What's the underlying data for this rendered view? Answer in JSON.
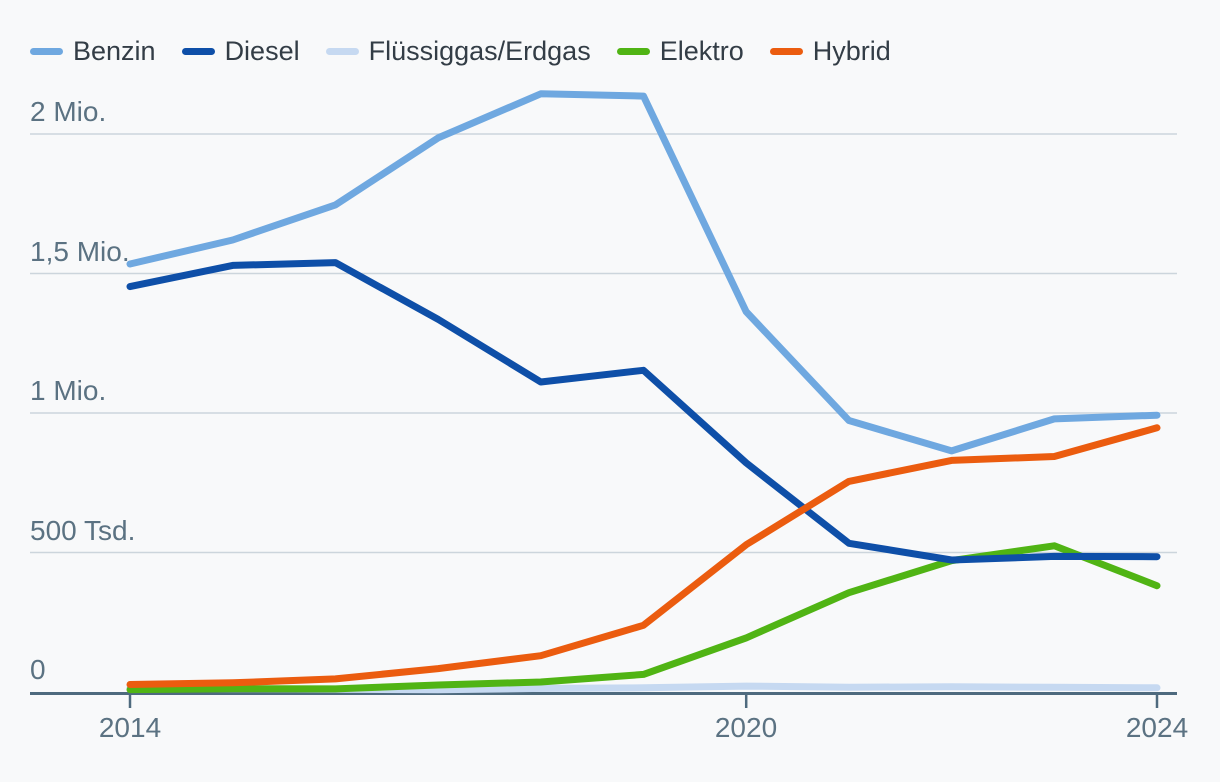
{
  "colors": {
    "background": "#f8f9fa",
    "grid": "#ccd5dc",
    "axis": "#4e6a7e",
    "tick_text": "#5b7282",
    "legend_text": "#333d46"
  },
  "chart_data": {
    "type": "line",
    "title": "",
    "x": [
      2014,
      2015,
      2016,
      2017,
      2018,
      2019,
      2020,
      2021,
      2022,
      2023,
      2024
    ],
    "series": [
      {
        "name": "Benzin",
        "slug": "benzin",
        "color": "#6fa8e0",
        "values": [
          1534000,
          1620000,
          1746000,
          1986000,
          2144000,
          2136000,
          1363000,
          973000,
          864000,
          979000,
          992000
        ]
      },
      {
        "name": "Diesel",
        "slug": "diesel",
        "color": "#0e4fa8",
        "values": [
          1453000,
          1529000,
          1539000,
          1336000,
          1111000,
          1153000,
          821000,
          533000,
          473000,
          486000,
          485000
        ]
      },
      {
        "name": "Flüssiggas/Erdgas",
        "slug": "fluessiggas-erdgas",
        "color": "#c6d9f1",
        "values": [
          14000,
          12000,
          10000,
          8000,
          13000,
          15000,
          21000,
          17000,
          19000,
          17000,
          15000
        ]
      },
      {
        "name": "Elektro",
        "slug": "elektro",
        "color": "#50b414",
        "values": [
          8500,
          12000,
          11000,
          25000,
          36000,
          63000,
          194000,
          356000,
          471000,
          524000,
          381000
        ]
      },
      {
        "name": "Hybrid",
        "slug": "hybrid",
        "color": "#eb5c0f",
        "values": [
          27000,
          33000,
          47000,
          84000,
          130000,
          239000,
          528000,
          755000,
          830000,
          844000,
          947000
        ]
      }
    ],
    "draw_order": [
      "Flüssiggas/Erdgas",
      "Elektro",
      "Benzin",
      "Diesel",
      "Hybrid"
    ],
    "yticks": [
      {
        "value": 0,
        "label": "0"
      },
      {
        "value": 500000,
        "label": "500 Tsd."
      },
      {
        "value": 1000000,
        "label": "1 Mio."
      },
      {
        "value": 1500000,
        "label": "1,5 Mio."
      },
      {
        "value": 2000000,
        "label": "2 Mio."
      }
    ],
    "xticks": [
      {
        "value": 2014,
        "label": "2014"
      },
      {
        "value": 2020,
        "label": "2020"
      },
      {
        "value": 2024,
        "label": "2024"
      }
    ],
    "xlim": [
      2014,
      2024
    ],
    "ylim": [
      0,
      2150000
    ],
    "grid": true,
    "legend_position": "top-left"
  }
}
